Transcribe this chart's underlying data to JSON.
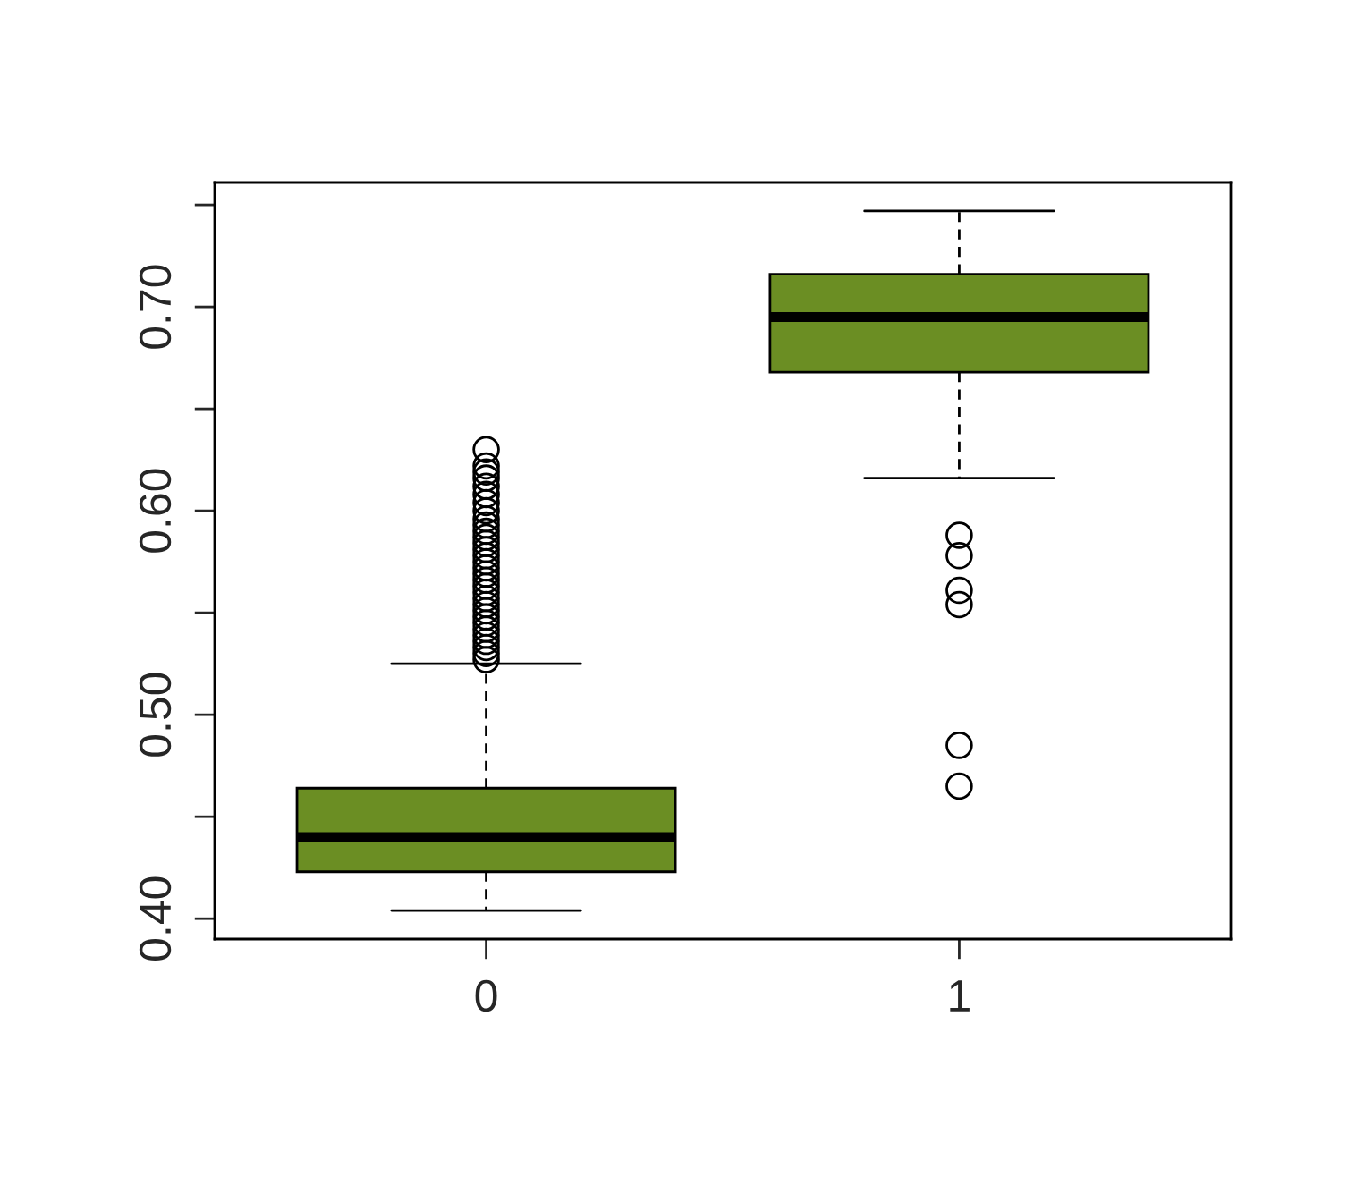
{
  "chart_data": {
    "type": "box",
    "categories": [
      "0",
      "1"
    ],
    "color": "#6b8e23",
    "boxes": [
      {
        "low": 0.404,
        "q1": 0.423,
        "median": 0.44,
        "q3": 0.464,
        "high": 0.525,
        "outliers": [
          0.527,
          0.53,
          0.533,
          0.536,
          0.539,
          0.542,
          0.545,
          0.548,
          0.551,
          0.554,
          0.557,
          0.56,
          0.563,
          0.566,
          0.569,
          0.572,
          0.575,
          0.578,
          0.581,
          0.584,
          0.587,
          0.59,
          0.593,
          0.596,
          0.6,
          0.604,
          0.608,
          0.612,
          0.616,
          0.619,
          0.622,
          0.63
        ]
      },
      {
        "low": 0.616,
        "q1": 0.668,
        "median": 0.695,
        "q3": 0.716,
        "high": 0.747,
        "outliers": [
          0.588,
          0.578,
          0.561,
          0.554,
          0.485,
          0.465
        ]
      }
    ],
    "ylim": [
      0.39,
      0.761
    ],
    "yticks": [
      {
        "value": 0.4,
        "label": "0.40"
      },
      {
        "value": 0.45,
        "label": null
      },
      {
        "value": 0.5,
        "label": "0.50"
      },
      {
        "value": 0.55,
        "label": null
      },
      {
        "value": 0.6,
        "label": "0.60"
      },
      {
        "value": 0.65,
        "label": null
      },
      {
        "value": 0.7,
        "label": "0.70"
      },
      {
        "value": 0.75,
        "label": null
      }
    ],
    "grid": false,
    "legend": false
  }
}
